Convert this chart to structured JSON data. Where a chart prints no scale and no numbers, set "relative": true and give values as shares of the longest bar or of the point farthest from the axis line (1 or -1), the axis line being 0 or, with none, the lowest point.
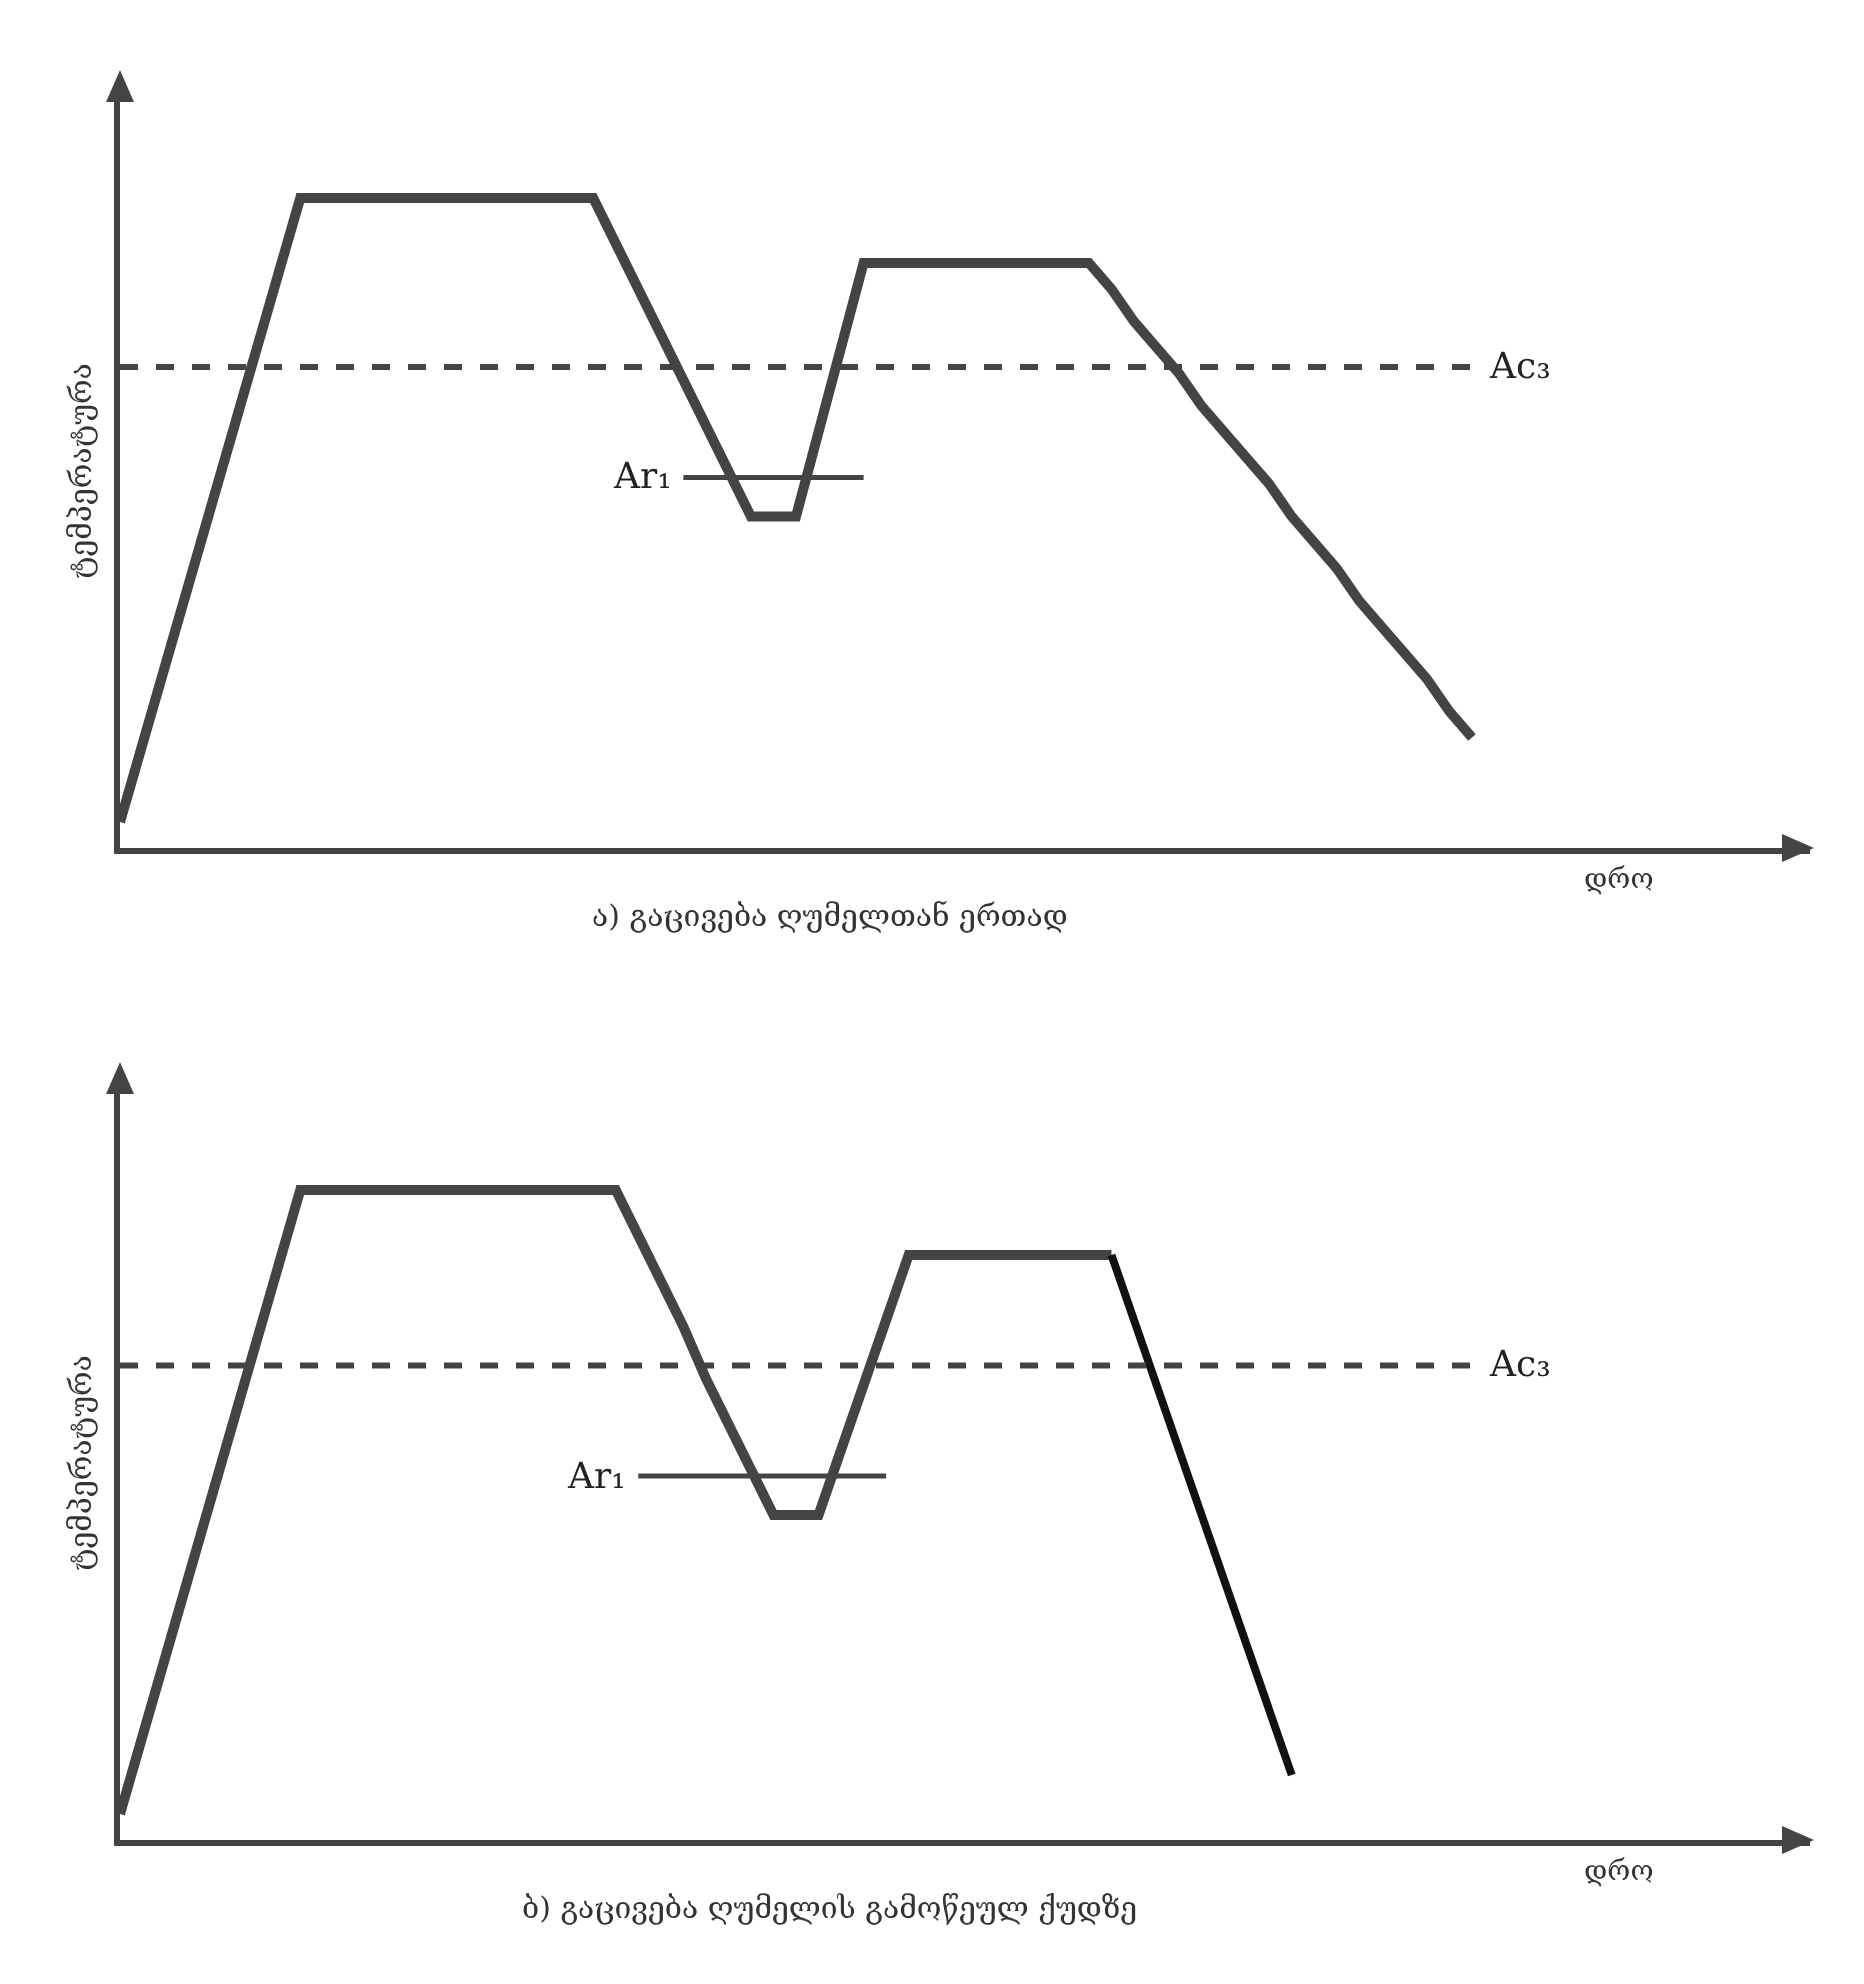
{
  "chart_data": [
    {
      "type": "line",
      "relative": true,
      "ylabel": "ტემპერატურა",
      "xlabel": "დრო",
      "annotations": [
        "ა) გაცივება ღუმელთან ერთად"
      ],
      "categories": [
        null,
        null,
        null,
        null,
        null,
        null,
        null,
        null,
        null,
        null,
        null,
        null,
        null,
        null,
        null,
        null,
        null,
        null,
        null,
        null,
        null,
        null,
        null,
        null,
        null,
        null,
        null,
        null,
        null,
        null,
        null,
        null,
        null,
        null,
        null,
        null,
        null,
        null,
        null,
        null,
        null,
        null,
        null,
        null,
        null,
        null,
        null,
        null,
        null,
        null,
        null,
        null,
        null,
        null,
        null,
        null,
        null,
        null,
        null,
        null,
        null,
        null,
        null,
        null,
        null,
        null,
        null,
        null,
        null,
        null,
        null,
        null,
        null,
        null,
        null,
        null
      ],
      "series": [
        {
          "color": "#444444",
          "values": [
            0.04,
            0.16,
            0.28,
            0.4,
            0.52,
            0.64,
            0.76,
            0.88,
            1,
            1,
            1,
            1,
            1,
            1,
            1,
            1,
            1,
            1,
            1,
            1,
            1,
            1,
            0.93,
            0.86,
            0.79,
            0.72,
            0.65,
            0.58,
            0.51,
            0.51,
            0.51,
            0.64,
            0.77,
            0.9,
            0.9,
            0.9,
            0.9,
            0.9,
            0.9,
            0.9,
            0.9,
            0.9,
            0.9,
            0.9,
            0.86,
            0.81,
            0.77,
            0.73,
            0.68,
            0.64,
            0.6,
            0.56,
            0.51,
            0.47,
            0.43,
            0.38,
            0.34,
            0.3,
            0.26,
            0.21,
            0.17,
            null,
            null,
            null,
            null,
            null,
            null,
            null,
            null,
            null,
            null,
            null,
            null,
            null,
            null,
            null
          ]
        },
        {
          "name": "Ar₁",
          "color": "#444444",
          "values": [
            null,
            null,
            null,
            null,
            null,
            null,
            null,
            null,
            null,
            null,
            null,
            null,
            null,
            null,
            null,
            null,
            null,
            null,
            null,
            null,
            null,
            null,
            null,
            null,
            null,
            0.57,
            0.57,
            0.57,
            0.57,
            0.57,
            0.57,
            0.57,
            0.57,
            0.57,
            null,
            null,
            null,
            null,
            null,
            null,
            null,
            null,
            null,
            null,
            null,
            null,
            null,
            null,
            null,
            null,
            null,
            null,
            null,
            null,
            null,
            null,
            null,
            null,
            null,
            null,
            null,
            null,
            null,
            null,
            null,
            null,
            null,
            null,
            null,
            null,
            null,
            null,
            null,
            null,
            null,
            null
          ]
        }
      ],
      "ref_lines": [
        {
          "axis": "y",
          "value": 0.74,
          "label": "Ac₃",
          "color": "#444444",
          "line_style": "dashed"
        }
      ]
    },
    {
      "type": "line",
      "relative": true,
      "ylabel": "ტემპერატურა",
      "xlabel": "დრო",
      "annotations": [
        "ბ) გაცივება ღუმელის გამოწეულ ქუდზე"
      ],
      "categories": [
        null,
        null,
        null,
        null,
        null,
        null,
        null,
        null,
        null,
        null,
        null,
        null,
        null,
        null,
        null,
        null,
        null,
        null,
        null,
        null,
        null,
        null,
        null,
        null,
        null,
        null,
        null,
        null,
        null,
        null,
        null,
        null,
        null,
        null,
        null,
        null,
        null,
        null,
        null,
        null,
        null,
        null,
        null,
        null,
        null,
        null,
        null,
        null,
        null,
        null,
        null,
        null,
        null,
        null,
        null,
        null,
        null,
        null,
        null,
        null,
        null,
        null,
        null,
        null,
        null,
        null,
        null,
        null,
        null,
        null,
        null,
        null,
        null,
        null,
        null,
        null
      ],
      "series": [
        {
          "color": "#444444",
          "values": [
            0.04,
            0.16,
            0.28,
            0.4,
            0.52,
            0.64,
            0.76,
            0.88,
            1,
            1,
            1,
            1,
            1,
            1,
            1,
            1,
            1,
            1,
            1,
            1,
            1,
            1,
            1,
            0.93,
            0.86,
            0.79,
            0.71,
            0.64,
            0.57,
            0.5,
            0.5,
            0.5,
            0.6,
            0.7,
            0.8,
            0.9,
            0.9,
            0.9,
            0.9,
            0.9,
            0.9,
            0.9,
            0.9,
            0.9,
            0.9,
            null,
            null,
            null,
            null,
            null,
            null,
            null,
            null,
            null,
            null,
            null,
            null,
            null,
            null,
            null,
            null,
            null,
            null,
            null,
            null,
            null,
            null,
            null,
            null,
            null,
            null,
            null,
            null,
            null,
            null,
            null
          ]
        },
        {
          "color": "#111111",
          "values": [
            null,
            null,
            null,
            null,
            null,
            null,
            null,
            null,
            null,
            null,
            null,
            null,
            null,
            null,
            null,
            null,
            null,
            null,
            null,
            null,
            null,
            null,
            null,
            null,
            null,
            null,
            null,
            null,
            null,
            null,
            null,
            null,
            null,
            null,
            null,
            null,
            null,
            null,
            null,
            null,
            null,
            null,
            null,
            null,
            0.9,
            0.8,
            0.7,
            0.6,
            0.5,
            0.4,
            0.3,
            0.2,
            0.1,
            null,
            null,
            null,
            null,
            null,
            null,
            null,
            null,
            null,
            null,
            null,
            null,
            null,
            null,
            null,
            null,
            null,
            null,
            null,
            null,
            null,
            null,
            null
          ]
        },
        {
          "name": "Ar₁",
          "color": "#444444",
          "values": [
            null,
            null,
            null,
            null,
            null,
            null,
            null,
            null,
            null,
            null,
            null,
            null,
            null,
            null,
            null,
            null,
            null,
            null,
            null,
            null,
            null,
            null,
            null,
            0.56,
            0.56,
            0.56,
            0.56,
            0.56,
            0.56,
            0.56,
            0.56,
            0.56,
            0.56,
            0.56,
            0.56,
            null,
            null,
            null,
            null,
            null,
            null,
            null,
            null,
            null,
            null,
            null,
            null,
            null,
            null,
            null,
            null,
            null,
            null,
            null,
            null,
            null,
            null,
            null,
            null,
            null,
            null,
            null,
            null,
            null,
            null,
            null,
            null,
            null,
            null,
            null,
            null,
            null,
            null,
            null,
            null,
            null
          ]
        }
      ],
      "ref_lines": [
        {
          "axis": "y",
          "value": 0.73,
          "label": "Ac₃",
          "color": "#444444",
          "line_style": "dashed"
        }
      ]
    }
  ]
}
